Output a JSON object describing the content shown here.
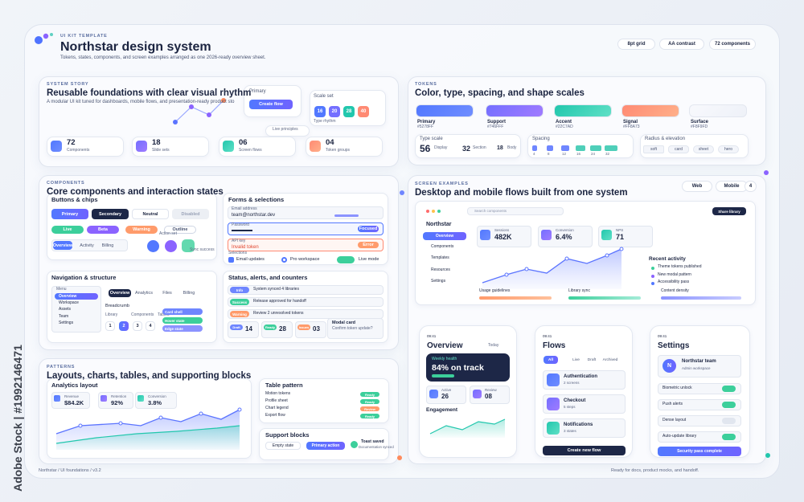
{
  "header": {
    "eyebrow": "UI KIT TEMPLATE",
    "title": "Northstar design system",
    "subtitle": "Tokens, states, components, and screen examples arranged as one 2026-ready overview sheet.",
    "pills": [
      "8pt grid",
      "AA contrast",
      "72 components"
    ]
  },
  "system_story": {
    "eyebrow": "SYSTEM STORY",
    "title": "Reusable foundations with clear visual rhythm",
    "subtitle": "A modular UI kit tuned for dashboards, mobile flows, and presentation-ready product sto",
    "primary_label": "Primary",
    "primary_button": "Create flow",
    "scale_label": "Scale set",
    "scale": [
      "16",
      "20",
      "28",
      "40"
    ],
    "type_rhythm": "Type rhythm",
    "live_label": "Live principles",
    "stats": [
      {
        "value": "72",
        "label": "Components"
      },
      {
        "value": "18",
        "label": "Slide sets"
      },
      {
        "value": "06",
        "label": "Screen flows"
      },
      {
        "value": "04",
        "label": "Token groups"
      }
    ]
  },
  "tokens": {
    "eyebrow": "TOKENS",
    "title": "Color, type, spacing, and shape scales",
    "swatches": [
      {
        "name": "Primary",
        "hex": "#5278FF"
      },
      {
        "name": "Support",
        "hex": "#746FFF"
      },
      {
        "name": "Accent",
        "hex": "#22C7AD"
      },
      {
        "name": "Signal",
        "hex": "#FF8A73"
      },
      {
        "name": "Surface",
        "hex": "#F8F9FD"
      }
    ],
    "type_scale": {
      "label": "Type scale",
      "items": [
        {
          "size": "56",
          "name": "Display"
        },
        {
          "size": "32",
          "name": "Section"
        },
        {
          "size": "18",
          "name": "Body"
        }
      ]
    },
    "spacing": {
      "label": "Spacing",
      "items": [
        "4",
        "8",
        "12",
        "16",
        "24",
        "32"
      ]
    },
    "radius": {
      "label": "Radius & elevation",
      "items": [
        "soft",
        "card",
        "sheet",
        "hero"
      ]
    }
  },
  "components": {
    "eyebrow": "COMPONENTS",
    "title": "Core components and interaction states",
    "buttons": {
      "title": "Buttons & chips",
      "buttons": [
        "Primary",
        "Secondary",
        "Neutral",
        "Disabled"
      ],
      "chips": [
        "Live",
        "Beta",
        "Warning",
        "Outline"
      ],
      "tabs": [
        "Overview",
        "Activity",
        "Billing"
      ],
      "action_set": "Action set",
      "status": "Sync success"
    },
    "forms": {
      "title": "Forms & selections",
      "email_label": "Email address",
      "email": "team@northstar.dev",
      "password_label": "Password",
      "password_tag": "Focused",
      "api_label": "API key",
      "api_error": "Invalid token",
      "api_tag": "Error",
      "selections": "Selections",
      "checks": [
        "Email updates",
        "Pro workspace",
        "Live mode"
      ]
    },
    "nav": {
      "title": "Navigation & structure",
      "menu": "Menu",
      "menu_items": [
        "Overview",
        "Workspace",
        "Assets",
        "Team",
        "Settings"
      ],
      "tabs": [
        "Overview",
        "Analytics",
        "Files",
        "Billing"
      ],
      "breadcrumb": "Breadcrumb",
      "crumbs": [
        "Library",
        "Components",
        "Tables"
      ],
      "pages": [
        "1",
        "2",
        "3",
        "4"
      ],
      "cards": [
        "Card shell",
        "Hover state",
        "Edge state"
      ]
    },
    "status": {
      "title": "Status, alerts, and counters",
      "alerts": [
        {
          "tag": "Info",
          "text": "System synced 4 libraries"
        },
        {
          "tag": "Success",
          "text": "Release approved for handoff"
        },
        {
          "tag": "Warning",
          "text": "Review 2 unresolved tokens"
        }
      ],
      "counters": [
        {
          "tag": "Draft",
          "value": "14"
        },
        {
          "tag": "Ready",
          "value": "28"
        },
        {
          "tag": "Issues",
          "value": "03"
        }
      ],
      "modal_title": "Modal card",
      "modal_text": "Confirm token update?"
    }
  },
  "patterns": {
    "eyebrow": "PATTERNS",
    "title": "Layouts, charts, tables, and supporting blocks",
    "analytics": {
      "title": "Analytics layout",
      "kpis": [
        {
          "label": "Revenue",
          "value": "$84.2K"
        },
        {
          "label": "Retention",
          "value": "92%"
        },
        {
          "label": "Conversion",
          "value": "3.8%"
        }
      ]
    },
    "table": {
      "title": "Table pattern",
      "rows": [
        [
          "Motion tokens",
          "Ready"
        ],
        [
          "Profile sheet",
          "Ready"
        ],
        [
          "Chart legend",
          "Review"
        ],
        [
          "Export flow",
          "Ready"
        ]
      ]
    },
    "support": {
      "title": "Support blocks",
      "buttons": [
        "Empty state",
        "Primary action"
      ],
      "toast_title": "Toast saved",
      "toast_text": "Documentation synced"
    }
  },
  "screens": {
    "eyebrow": "SCREEN EXAMPLES",
    "title": "Desktop and mobile flows built from one system",
    "pills": [
      "Web",
      "Mobile",
      "4"
    ],
    "desktop": {
      "search": "Search components",
      "share": "Share library",
      "brand": "Northstar",
      "nav": [
        "Overview",
        "Components",
        "Templates",
        "Resources",
        "Settings"
      ],
      "kpis": [
        {
          "label": "Sessions",
          "value": "482K"
        },
        {
          "label": "Conversion",
          "value": "6.4%"
        },
        {
          "label": "NPS",
          "value": "71"
        }
      ],
      "usage": "Usage guidelines",
      "sync": "Library sync",
      "activity_title": "Recent activity",
      "activity": [
        "Theme tokens published",
        "New modal pattern",
        "Accessibility pass"
      ],
      "density": "Content density"
    },
    "phones": [
      {
        "time": "09:41",
        "title": "Overview",
        "aside": "Today",
        "health_label": "Weekly health",
        "health_value": "84% on track",
        "stats": [
          {
            "label": "Active",
            "value": "26"
          },
          {
            "label": "Review",
            "value": "08"
          }
        ],
        "section": "Engagement"
      },
      {
        "time": "09:41",
        "title": "Flows",
        "filters": [
          "All",
          "Live",
          "Draft",
          "Archived"
        ],
        "items": [
          {
            "title": "Authentication",
            "sub": "2 screens"
          },
          {
            "title": "Checkout",
            "sub": "5 steps"
          },
          {
            "title": "Notifications",
            "sub": "3 states"
          }
        ],
        "button": "Create new flow"
      },
      {
        "time": "09:41",
        "title": "Settings",
        "avatar": "N",
        "team": "Northstar team",
        "team_sub": "Admin workspace",
        "toggles": [
          "Biometric unlock",
          "Push alerts",
          "Dense layout",
          "Auto-update library"
        ],
        "button": "Security pass complete"
      }
    ]
  },
  "footer": {
    "left": "Northstar / UI foundations / v3.2",
    "right": "Ready for docs, product mocks, and handoff."
  },
  "watermark": "Adobe Stock | #1992146471"
}
